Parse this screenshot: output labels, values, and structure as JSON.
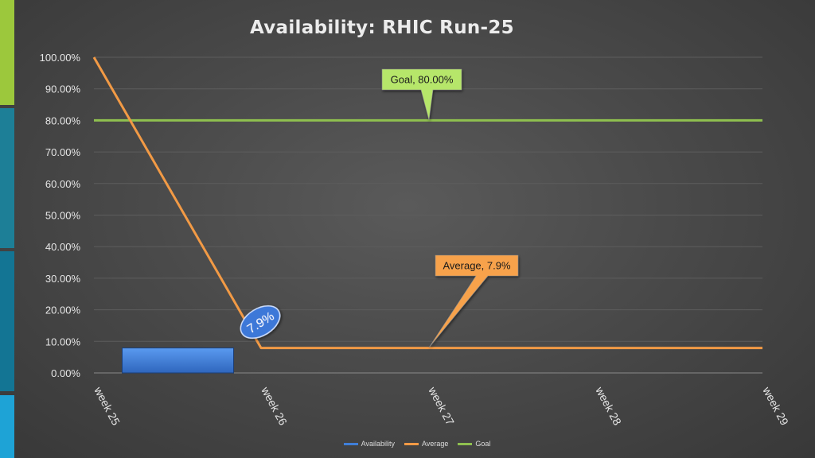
{
  "chart_data": {
    "type": "bar",
    "title": "Availability: RHIC Run-25",
    "categories": [
      "week 25",
      "week 26",
      "week 27",
      "week 28",
      "week 29"
    ],
    "ylim": [
      0,
      100
    ],
    "y_ticks": [
      "0.00%",
      "10.00%",
      "20.00%",
      "30.00%",
      "40.00%",
      "50.00%",
      "60.00%",
      "70.00%",
      "80.00%",
      "90.00%",
      "100.00%"
    ],
    "grid": true,
    "legend_position": "bottom",
    "series": [
      {
        "name": "Availability",
        "kind": "bar",
        "color": "#3f7fd9",
        "values": [
          null,
          7.9,
          null,
          null,
          null
        ]
      },
      {
        "name": "Average",
        "kind": "line",
        "color": "#f29a45",
        "x": [
          0,
          1,
          2,
          3,
          4
        ],
        "values": [
          100,
          7.9,
          7.9,
          7.9,
          7.9
        ]
      },
      {
        "name": "Goal",
        "kind": "line",
        "color": "#8fc04f",
        "x": [
          0,
          1,
          2,
          3,
          4
        ],
        "values": [
          80,
          80,
          80,
          80,
          80
        ]
      }
    ],
    "annotations": {
      "goal": "Goal, 80.00%",
      "average": "Average, 7.9%",
      "bar_label": "7.9%"
    }
  },
  "side_strip_colors": [
    "#9cc83c",
    "#1d7f97",
    "#137594",
    "#1ea3d6"
  ]
}
